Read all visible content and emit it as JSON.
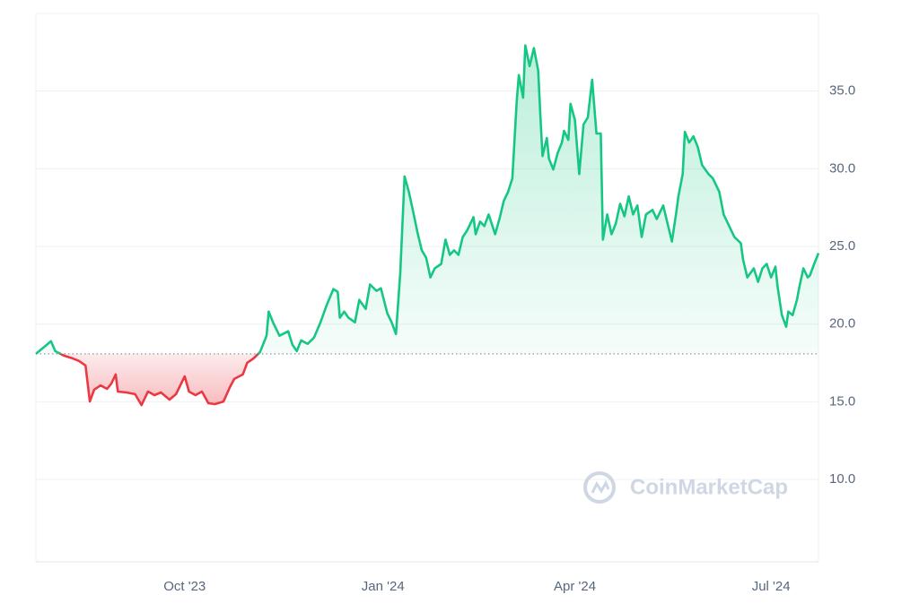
{
  "chart_data": {
    "type": "line",
    "watermark": "CoinMarketCap",
    "baseline": 18.09,
    "color_up": "#16c784",
    "color_down": "#ea3943",
    "grid": true,
    "xlim": [
      0,
      363
    ],
    "xticks": [
      {
        "value": 69,
        "label": "Oct '23"
      },
      {
        "value": 161,
        "label": "Jan '24"
      },
      {
        "value": 250,
        "label": "Apr '24"
      },
      {
        "value": 341,
        "label": "Jul '24"
      }
    ],
    "ylim": [
      4.7,
      40
    ],
    "yticks": [
      {
        "value": 10,
        "label": "10.0"
      },
      {
        "value": 15,
        "label": "15.0"
      },
      {
        "value": 20,
        "label": "20.0"
      },
      {
        "value": 25,
        "label": "25.0"
      },
      {
        "value": 30,
        "label": "30.0"
      },
      {
        "value": 35,
        "label": "35.0"
      }
    ],
    "x": [
      0,
      4,
      7,
      9,
      13,
      17,
      20,
      23,
      25,
      27,
      30,
      33,
      35,
      37,
      38,
      42,
      46,
      49,
      52,
      55,
      58,
      62,
      65,
      67,
      69,
      71,
      74,
      77,
      80,
      83,
      87,
      90,
      92,
      96,
      98,
      101,
      104,
      107,
      108,
      110,
      113,
      117,
      119,
      121,
      123,
      126,
      129,
      132,
      135,
      138,
      140,
      141,
      143,
      145,
      148,
      150,
      153,
      155,
      158,
      160,
      163,
      165,
      167,
      169,
      171,
      173,
      175,
      177,
      179,
      181,
      183,
      185,
      188,
      190,
      192,
      194,
      196,
      198,
      200,
      203,
      204,
      206,
      208,
      210,
      213,
      215,
      217,
      219,
      221,
      223,
      224,
      226,
      227,
      229,
      231,
      233,
      234,
      235,
      237,
      238,
      240,
      242,
      244,
      245,
      247,
      248,
      250,
      252,
      254,
      256,
      258,
      260,
      262,
      263,
      265,
      267,
      269,
      271,
      273,
      275,
      277,
      279,
      281,
      283,
      286,
      288,
      291,
      293,
      295,
      297,
      298,
      300,
      301,
      303,
      305,
      307,
      309,
      312,
      314,
      317,
      319,
      322,
      324,
      327,
      328,
      330,
      333,
      335,
      337,
      339,
      341,
      343,
      344,
      346,
      348,
      349,
      351,
      353,
      354,
      356,
      358,
      359,
      361,
      363
    ],
    "values": [
      18.09,
      18.55,
      18.9,
      18.26,
      17.97,
      17.8,
      17.63,
      17.34,
      15.02,
      15.78,
      16.06,
      15.83,
      16.18,
      16.76,
      15.66,
      15.6,
      15.49,
      14.79,
      15.66,
      15.43,
      15.6,
      15.14,
      15.49,
      16.06,
      16.64,
      15.66,
      15.43,
      15.66,
      14.91,
      14.85,
      15.02,
      15.95,
      16.47,
      16.76,
      17.51,
      17.8,
      18.21,
      19.25,
      20.81,
      20.12,
      19.25,
      19.54,
      18.67,
      18.26,
      18.96,
      18.73,
      19.13,
      20.12,
      21.27,
      22.26,
      22.08,
      20.41,
      20.81,
      20.41,
      20.12,
      21.56,
      20.98,
      22.55,
      22.14,
      22.31,
      20.69,
      20.12,
      19.36,
      23.3,
      29.51,
      28.51,
      27.23,
      25.9,
      24.75,
      24.28,
      23.01,
      23.59,
      23.88,
      25.44,
      24.46,
      24.75,
      24.46,
      25.61,
      26.02,
      26.89,
      25.79,
      26.6,
      26.31,
      27.06,
      25.79,
      26.77,
      27.93,
      28.51,
      29.38,
      34.29,
      36.03,
      34.58,
      37.94,
      36.61,
      37.77,
      36.32,
      33.43,
      30.82,
      31.98,
      30.65,
      29.95,
      31.0,
      31.69,
      32.44,
      31.86,
      34.18,
      33.14,
      29.66,
      32.85,
      33.31,
      35.74,
      32.27,
      32.27,
      25.44,
      27.06,
      25.79,
      26.48,
      27.75,
      26.94,
      28.22,
      27.06,
      27.64,
      25.61,
      27.06,
      27.35,
      26.77,
      27.64,
      26.48,
      25.32,
      27.18,
      28.22,
      29.66,
      32.38,
      31.69,
      32.09,
      31.4,
      30.24,
      29.66,
      29.38,
      28.51,
      27.06,
      26.19,
      25.61,
      25.21,
      24.17,
      23.01,
      23.59,
      22.72,
      23.59,
      23.88,
      23.01,
      23.7,
      22.43,
      20.58,
      19.83,
      20.81,
      20.58,
      21.56,
      22.31,
      23.59,
      23.01,
      23.13,
      23.88,
      24.57
    ]
  }
}
